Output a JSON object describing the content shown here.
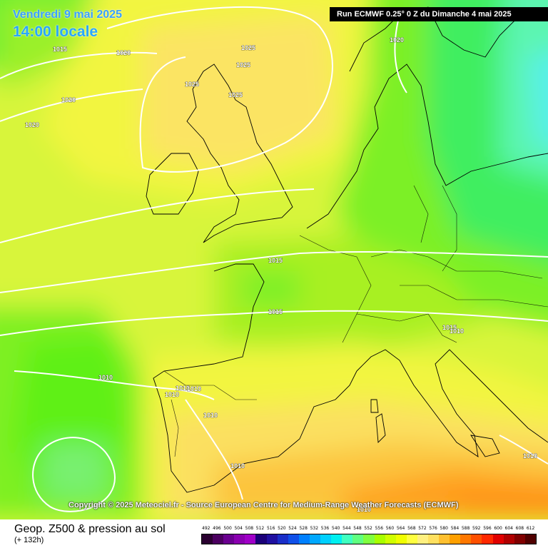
{
  "header": {
    "date": "Vendredi 9 mai 2025",
    "time": "14:00 locale",
    "run": "Run ECMWF 0.25° 0 Z du Dimanche 4 mai 2025"
  },
  "copyright": "Copyright © 2025 Meteociel.fr - Source European Centre for Medium-Range Weather Forecasts (ECMWF)",
  "footer": {
    "title": "Geop. Z500 & pression au sol",
    "subtitle": "(+ 132h)"
  },
  "scale": {
    "labels": [
      "492",
      "496",
      "500",
      "504",
      "508",
      "512",
      "516",
      "520",
      "524",
      "528",
      "532",
      "536",
      "540",
      "544",
      "548",
      "552",
      "556",
      "560",
      "564",
      "568",
      "572",
      "576",
      "580",
      "584",
      "588",
      "592",
      "596",
      "600",
      "604",
      "608",
      "612"
    ],
    "colors": [
      "#2a0030",
      "#4b0060",
      "#6a0090",
      "#8a00b0",
      "#a000c8",
      "#1b0078",
      "#2010a0",
      "#1a2ec8",
      "#1050e8",
      "#0080ff",
      "#00a8ff",
      "#00d0ff",
      "#00f0f0",
      "#40ffc0",
      "#60ff80",
      "#80ff40",
      "#a8ff00",
      "#d0ff00",
      "#f0ff00",
      "#ffff40",
      "#fff080",
      "#ffe060",
      "#ffc030",
      "#ffa000",
      "#ff7800",
      "#ff5000",
      "#ff2800",
      "#e00000",
      "#b00000",
      "#800000",
      "#500000"
    ]
  },
  "isobars": [
    "1015",
    "1020",
    "1025",
    "1025",
    "1025",
    "1025",
    "1020",
    "1020",
    "1020",
    "1015",
    "1015",
    "1015",
    "1010",
    "1010",
    "1010",
    "1010",
    "1010",
    "1010",
    "1010",
    "1010",
    "1010"
  ],
  "colors": {
    "banner": "#000000",
    "title": "#29a7ff",
    "isobar": "#ffffff",
    "coast": "#000000"
  }
}
